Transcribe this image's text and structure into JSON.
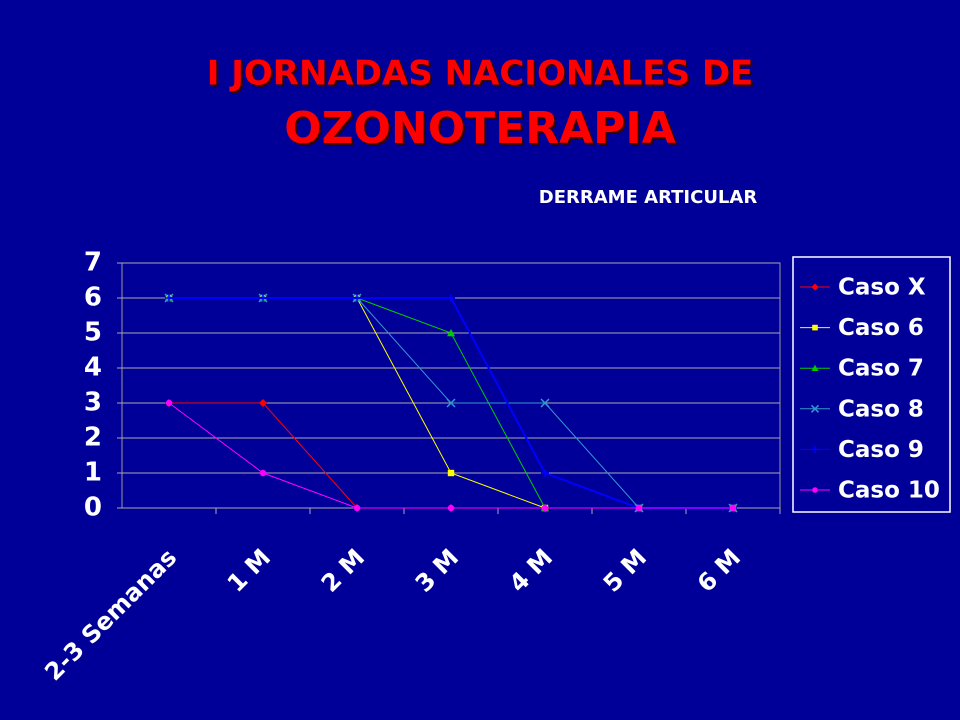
{
  "header": {
    "line1": "I JORNADAS NACIONALES DE",
    "line2": "OZONOTERAPIA"
  },
  "chart_data": {
    "type": "line",
    "title": "DERRAME ARTICULAR",
    "categories": [
      "2-3 Semanas",
      "1 M",
      "2 M",
      "3 M",
      "4 M",
      "5 M",
      "6 M"
    ],
    "ylim": [
      0,
      7
    ],
    "yticks": [
      0,
      1,
      2,
      3,
      4,
      5,
      6,
      7
    ],
    "grid": true,
    "legend": "right",
    "series": [
      {
        "name": "Caso X",
        "color": "#ff0000",
        "marker": "diamond",
        "values": [
          3,
          3,
          0,
          0,
          0,
          0,
          0
        ]
      },
      {
        "name": "Caso 6",
        "color": "#ffff00",
        "marker": "square",
        "values": [
          6,
          6,
          6,
          1,
          0,
          0,
          0
        ]
      },
      {
        "name": "Caso 7",
        "color": "#00cc00",
        "marker": "triangle",
        "values": [
          6,
          6,
          6,
          5,
          0,
          0,
          0
        ]
      },
      {
        "name": "Caso 8",
        "color": "#3399cc",
        "marker": "x",
        "values": [
          6,
          6,
          6,
          3,
          3,
          0,
          0
        ]
      },
      {
        "name": "Caso 9",
        "color": "#0000ff",
        "marker": "plus",
        "values": [
          6,
          6,
          6,
          6,
          1,
          0,
          0
        ]
      },
      {
        "name": "Caso 10",
        "color": "#ff00ff",
        "marker": "circle",
        "values": [
          3,
          1,
          0,
          0,
          0,
          0,
          0
        ]
      }
    ]
  }
}
